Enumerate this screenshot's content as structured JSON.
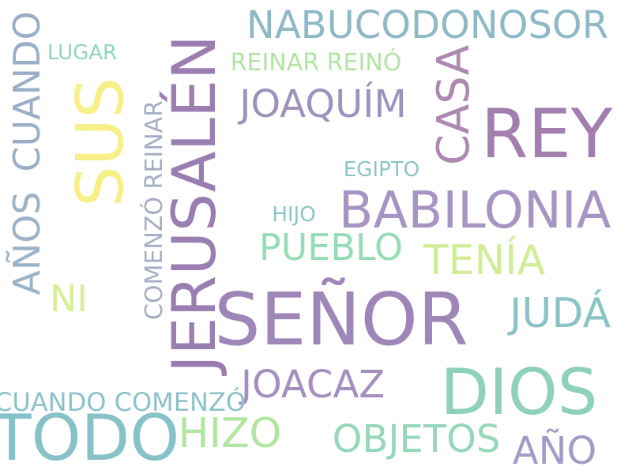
{
  "words": {
    "senor": {
      "text": "SEÑOR",
      "color": "#9e86b8"
    },
    "rey": {
      "text": "REY",
      "color": "#a27fae"
    },
    "jerusalen": {
      "text": "JERUSALÉN",
      "color": "#9a7db1"
    },
    "dios": {
      "text": "DIOS",
      "color": "#8fd0bb"
    },
    "todo": {
      "text": "TODO",
      "color": "#86c2c8"
    },
    "babilonia": {
      "text": "BABILONIA",
      "color": "#a695c3"
    },
    "sus": {
      "text": "SUS",
      "color": "#f7ef88"
    },
    "nabucodonosor": {
      "text": "NABUCODONOSOR",
      "color": "#8fb8c6"
    },
    "casa": {
      "text": "CASA",
      "color": "#ad89b1"
    },
    "joaquim": {
      "text": "JOAQUÍM",
      "color": "#9e92bd"
    },
    "joacaz": {
      "text": "JOACAZ",
      "color": "#a48fbf"
    },
    "juda": {
      "text": "JUDÁ",
      "color": "#8ac3c6"
    },
    "hizo": {
      "text": "HIZO",
      "color": "#b1e6a1"
    },
    "objetos": {
      "text": "OBJETOS",
      "color": "#94d8b9"
    },
    "ano": {
      "text": "AÑO",
      "color": "#a599c6"
    },
    "tenia": {
      "text": "TENÍA",
      "color": "#d0ec94"
    },
    "pueblo": {
      "text": "PUEBLO",
      "color": "#94dcb5"
    },
    "cuando_v": {
      "text": "CUANDO",
      "color": "#9aaec8"
    },
    "anos": {
      "text": "AÑOS",
      "color": "#9bb2c8"
    },
    "ni": {
      "text": "NI",
      "color": "#d6ee95"
    },
    "comenzo_reinar": {
      "text": "COMENZÓ REINAR",
      "color": "#a6acc5"
    },
    "cuando_comenzo": {
      "text": "CUANDO COMENZÓ",
      "color": "#8cc2c9"
    },
    "reinar_reino": {
      "text": "REINAR REINÓ",
      "color": "#b0e4a4"
    },
    "lugar": {
      "text": "LUGAR",
      "color": "#91d6bb"
    },
    "egipto": {
      "text": "EGIPTO",
      "color": "#8ec3c6"
    },
    "hijo": {
      "text": "HIJO",
      "color": "#8ac7c9"
    }
  }
}
